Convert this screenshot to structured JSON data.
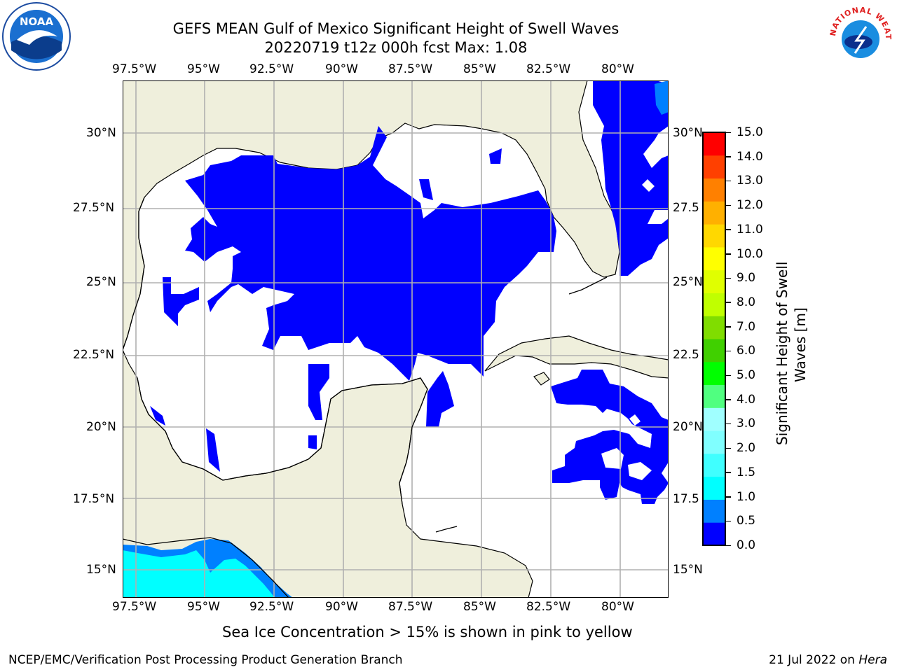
{
  "title_line1": "GEFS MEAN Gulf of Mexico Significant Height of Swell Waves",
  "title_line2": "20220719 t12z 000h fcst   Max: 1.08",
  "lon_labels": [
    "97.5°W",
    "95°W",
    "92.5°W",
    "90°W",
    "87.5°W",
    "85°W",
    "82.5°W",
    "80°W"
  ],
  "lat_labels_left": [
    "30°N",
    "27.5°N",
    "25°N",
    "22.5°N",
    "20°N",
    "17.5°N",
    "15°N"
  ],
  "lat_labels_right": [
    "30°N",
    "27.5",
    "25°N",
    "22.5",
    "20°N",
    "17.5",
    "15°N"
  ],
  "colorbar": {
    "label_line1": "Significant Height of Swell",
    "label_line2": "Waves [m]",
    "ticks": [
      "15.0",
      "14.0",
      "13.0",
      "12.0",
      "11.0",
      "10.0",
      "9.0",
      "8.0",
      "7.0",
      "6.0",
      "5.0",
      "4.0",
      "3.0",
      "2.0",
      "1.5",
      "1.0",
      "0.5",
      "0.0"
    ],
    "colors": [
      "#0000ff",
      "#0080ff",
      "#00ffff",
      "#40ffff",
      "#80ffff",
      "#a0ffff",
      "#50ff80",
      "#00ff00",
      "#40d000",
      "#80dd00",
      "#c0ff00",
      "#e0ff00",
      "#ffff00",
      "#ffd800",
      "#ffb000",
      "#ff8000",
      "#ff4000",
      "#ff0000"
    ]
  },
  "map_colors": {
    "land": "#efefdc",
    "ocean": "#ffffff",
    "swell_low": "#0000ff",
    "swell_mid": "#0080ff",
    "swell_high": "#00ffff",
    "grid": "#b0b0b0"
  },
  "note": "Sea Ice Concentration > 15% is shown in pink to yellow",
  "footer_left": "NCEP/EMC/Verification Post Processing Product Generation Branch",
  "footer_right_prefix": "21 Jul 2022 on ",
  "footer_right_host": "Hera",
  "logo_left": {
    "icon": "noaa-logo-icon",
    "text": "NOAA"
  },
  "logo_right": {
    "icon": "nws-logo-icon",
    "text": "NATIONAL WEATHER SERVICE"
  }
}
